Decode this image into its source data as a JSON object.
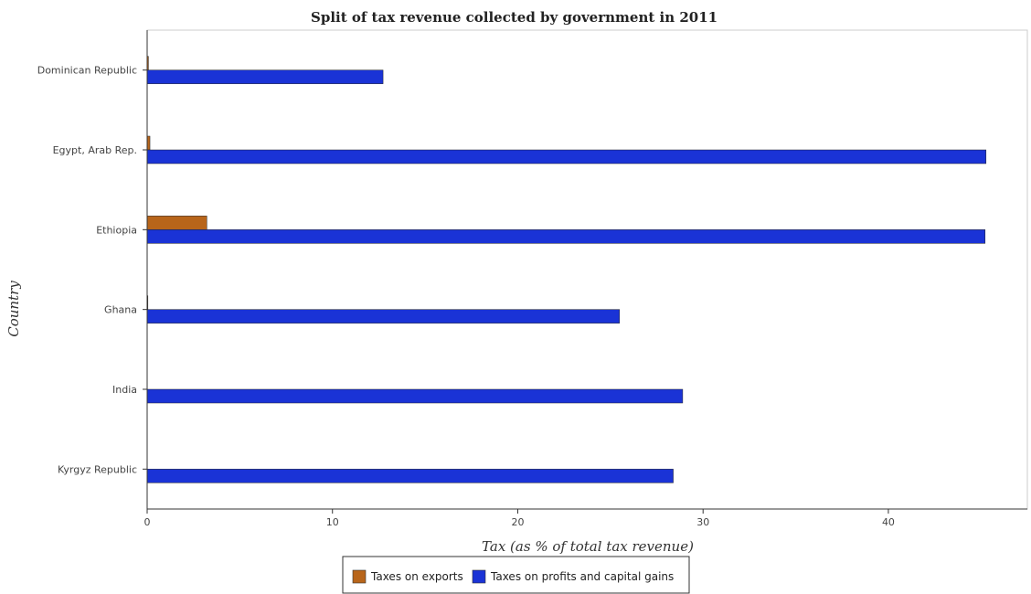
{
  "chart_data": {
    "type": "bar",
    "orientation": "horizontal",
    "title": "Split of tax revenue collected by government in 2011",
    "xlabel": "Tax (as % of total tax revenue)",
    "ylabel": "Country",
    "xlim": [
      0,
      47.5
    ],
    "xticks": [
      0,
      10,
      20,
      30,
      40
    ],
    "categories": [
      "Dominican Republic",
      "Egypt, Arab Rep.",
      "Ethiopia",
      "Ghana",
      "India",
      "Kyrgyz Republic"
    ],
    "series": [
      {
        "name": "Taxes on exports",
        "color": "#b8651a",
        "values": [
          0.07,
          0.15,
          3.22,
          0.04,
          0.01,
          0.0
        ]
      },
      {
        "name": "Taxes on profits and capital gains",
        "color": "#1a33d6",
        "values": [
          12.73,
          45.27,
          45.22,
          25.49,
          28.9,
          28.39
        ]
      }
    ],
    "legend_position": "bottom-center",
    "grid": false
  }
}
